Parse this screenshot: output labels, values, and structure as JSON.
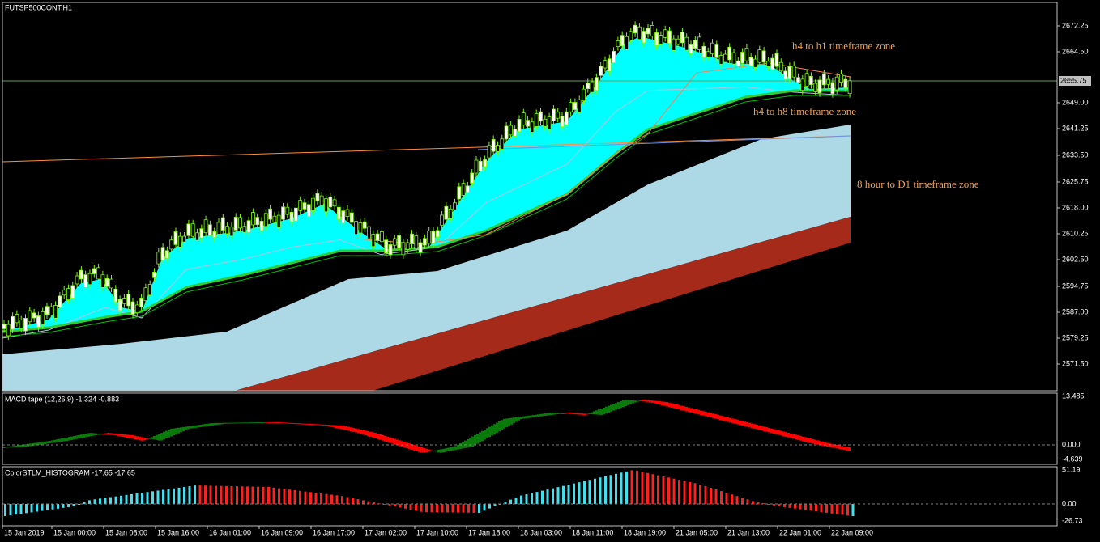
{
  "window": {
    "title": "FUTSP500CONT,H1"
  },
  "price_axis": {
    "labels": [
      "2672.25",
      "2664.50",
      "2649.00",
      "2641.25",
      "2633.50",
      "2625.75",
      "2618.00",
      "2610.25",
      "2602.50",
      "2594.75",
      "2587.00",
      "2579.25",
      "2571.50"
    ],
    "current": "2655.75"
  },
  "annotations": [
    "h4 to h1 timeframe zone",
    "h4 to h8 timeframe zone",
    "8 hour to D1 timeframe zone"
  ],
  "macd": {
    "label": "MACD tape (12,26,9) -1.324 -0.883",
    "axis": [
      "13.485",
      "0.000",
      "-4.639"
    ]
  },
  "histogram": {
    "label": "ColorSTLM_HISTOGRAM -17.65 -17.65",
    "axis": [
      "51.19",
      "0.00",
      "-26.73"
    ]
  },
  "time_axis": {
    "labels": [
      "15 Jan 2019",
      "15 Jan 00:00",
      "15 Jan 08:00",
      "15 Jan 16:00",
      "16 Jan 01:00",
      "16 Jan 09:00",
      "16 Jan 17:00",
      "17 Jan 02:00",
      "17 Jan 10:00",
      "17 Jan 18:00",
      "18 Jan 03:00",
      "18 Jan 11:00",
      "18 Jan 19:00",
      "21 Jan 05:00",
      "21 Jan 13:00",
      "22 Jan 01:00",
      "22 Jan 09:00"
    ]
  }
}
